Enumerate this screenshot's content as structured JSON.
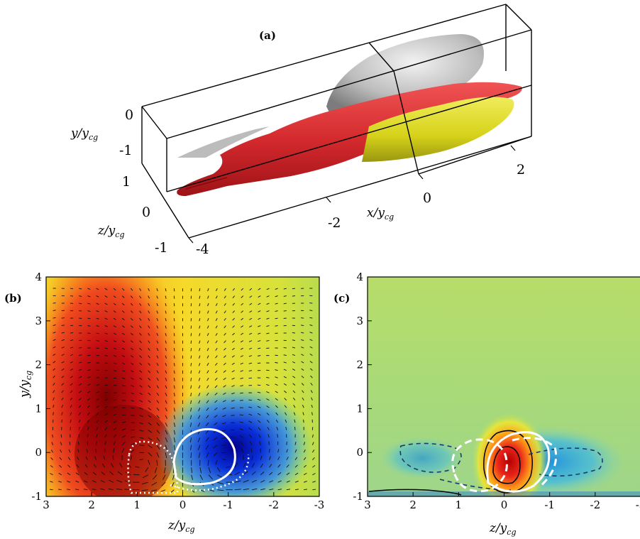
{
  "panels": {
    "a": {
      "label": "(a)",
      "y_axis_label": "y/y",
      "y_axis_sub": "cg",
      "z_axis_label": "z/y",
      "z_axis_sub": "cg",
      "x_axis_label": "x/y",
      "x_axis_sub": "cg",
      "y_ticks": [
        "0",
        "-1"
      ],
      "z_ticks": [
        "1",
        "0",
        "-1"
      ],
      "x_ticks": [
        "-4",
        "-2",
        "0",
        "2"
      ],
      "surface_colors": {
        "red": "#d42a2e",
        "yellow": "#d6d21a",
        "gray": "#b9b9b9"
      }
    },
    "b": {
      "label": "(b)",
      "colormap": [
        "#00008f",
        "#0060ff",
        "#2fc7ef",
        "#9bdc5c",
        "#f2e92c",
        "#ff8e17",
        "#e3181b",
        "#7f0000"
      ]
    },
    "c": {
      "label": "(c)"
    }
  },
  "chart_data": [
    {
      "type": "heatmap",
      "panel": "b",
      "xlabel": "z/y",
      "xlabel_sub": "cg",
      "ylabel": "y/y",
      "ylabel_sub": "cg",
      "xlim": [
        3,
        -3
      ],
      "ylim": [
        -1,
        4
      ],
      "xticks": [
        "3",
        "2",
        "1",
        "0",
        "-1",
        "-2",
        "-3"
      ],
      "yticks": [
        "4",
        "3",
        "2",
        "1",
        "0",
        "-1"
      ],
      "overlay": "quiver",
      "features": [
        {
          "kind": "positive-region",
          "z": 1.0,
          "y": 0.5
        },
        {
          "kind": "negative-region",
          "z": -0.9,
          "y": 0.0
        },
        {
          "kind": "white-solid-contour",
          "z": -0.5,
          "y": 0.0
        },
        {
          "kind": "white-dotted-contour",
          "z": 0.9,
          "y": -0.4
        }
      ]
    },
    {
      "type": "heatmap",
      "panel": "c",
      "xlabel": "z/y",
      "xlabel_sub": "cg",
      "xlim": [
        3,
        -3
      ],
      "ylim": [
        -1,
        4
      ],
      "xticks": [
        "3",
        "2",
        "1",
        "0",
        "-1",
        "-2",
        "-3"
      ],
      "yticks": [
        "4",
        "3",
        "2",
        "1",
        "0",
        "-1"
      ],
      "features": [
        {
          "kind": "positive-peak",
          "z": 0.0,
          "y": -0.2
        },
        {
          "kind": "negative-dashed-contour",
          "z": -1.8,
          "y": -0.3
        },
        {
          "kind": "white-solid-contour",
          "z": -0.3,
          "y": -0.1
        },
        {
          "kind": "white-dashed-contour",
          "z": 0.5,
          "y": -0.1
        }
      ]
    }
  ]
}
